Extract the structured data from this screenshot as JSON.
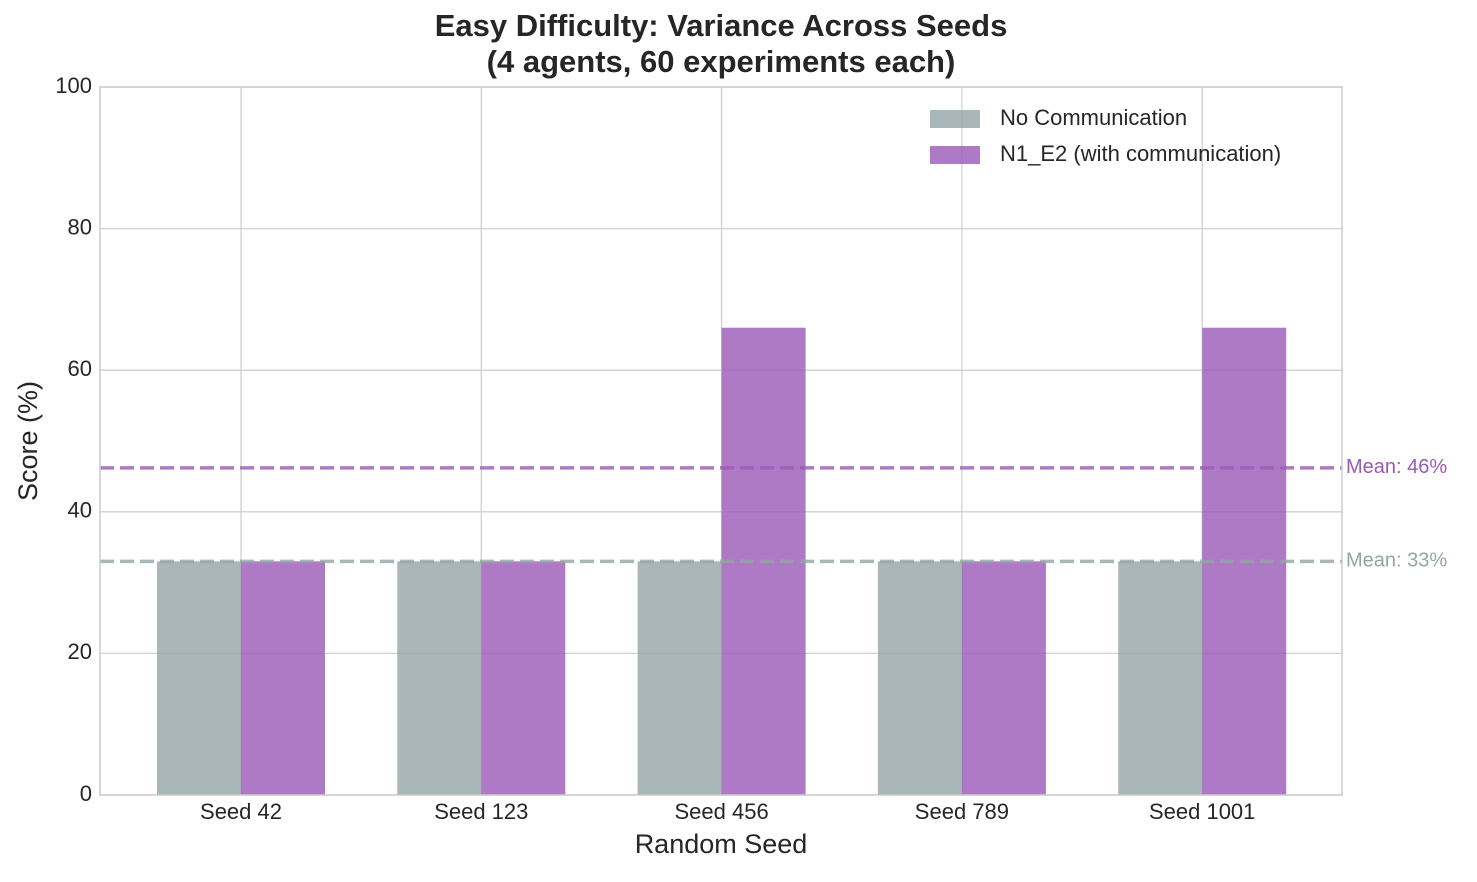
{
  "chart_data": {
    "type": "bar",
    "title": "Easy Difficulty: Variance Across Seeds",
    "subtitle": "(4 agents, 60 experiments each)",
    "x_label": "Random Seed",
    "y_label": "Score (%)",
    "categories": [
      "Seed 42",
      "Seed 123",
      "Seed 456",
      "Seed 789",
      "Seed 1001"
    ],
    "series": [
      {
        "name": "No Communication",
        "color": "#95a5a6",
        "values": [
          33,
          33,
          33,
          33,
          33
        ]
      },
      {
        "name": "N1_E2 (with communication)",
        "color": "#9b59b6",
        "values": [
          33,
          33,
          66,
          33,
          66
        ]
      }
    ],
    "mean_lines": [
      {
        "value": 46.2,
        "label": "Mean: 46%",
        "color": "#9b59b6"
      },
      {
        "value": 33,
        "label": "Mean: 33%",
        "color": "#95a5a6"
      }
    ],
    "ylim": [
      0,
      100
    ],
    "yticks": [
      0,
      20,
      40,
      60,
      80,
      100
    ],
    "grid": true,
    "legend": "upper right"
  }
}
